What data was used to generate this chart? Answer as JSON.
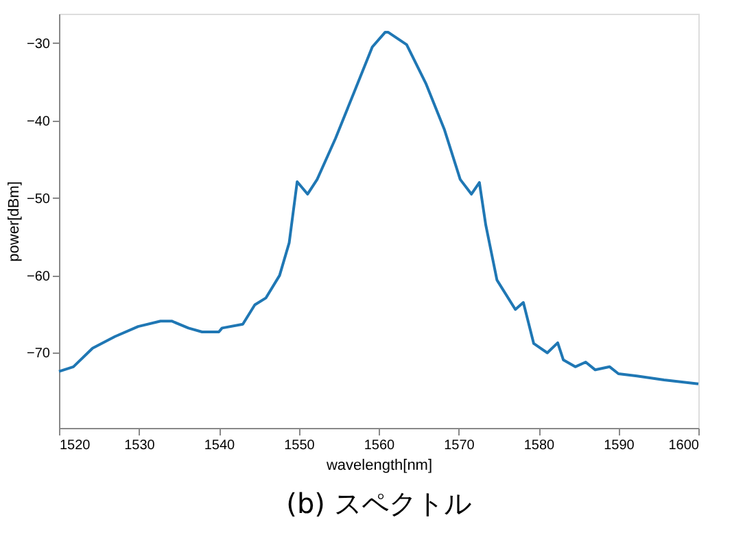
{
  "chart_data": {
    "type": "line",
    "title": "(b) スペクトル",
    "xlabel": "wavelength[nm]",
    "ylabel": "power[dBm]",
    "x": [
      1520,
      1521.8,
      1524.2,
      1527.0,
      1529.9,
      1532.7,
      1534.1,
      1536.2,
      1537.9,
      1540.0,
      1540.4,
      1543.0,
      1544.5,
      1545.9,
      1547.6,
      1548.8,
      1549.8,
      1551.1,
      1552.3,
      1554.6,
      1556.9,
      1559.2,
      1560.8,
      1561.2,
      1563.5,
      1565.9,
      1568.2,
      1570.2,
      1571.6,
      1572.6,
      1573.4,
      1574.8,
      1577.1,
      1578.1,
      1579.4,
      1581.1,
      1582.4,
      1583.1,
      1584.6,
      1585.9,
      1587.1,
      1588.9,
      1590.0,
      1592.3,
      1595.7,
      1600
    ],
    "series": [
      {
        "color": "#1f77b4",
        "values": [
          -72.4,
          -71.8,
          -69.4,
          -67.9,
          -66.6,
          -65.9,
          -65.9,
          -66.8,
          -67.3,
          -67.3,
          -66.8,
          -66.3,
          -63.8,
          -62.9,
          -60.0,
          -55.8,
          -47.9,
          -49.5,
          -47.6,
          -42.3,
          -36.4,
          -30.5,
          -28.6,
          -28.6,
          -30.2,
          -35.2,
          -41.1,
          -47.6,
          -49.5,
          -48.0,
          -53.5,
          -60.6,
          -64.4,
          -63.5,
          -68.8,
          -70.0,
          -68.7,
          -70.9,
          -71.8,
          -71.2,
          -72.2,
          -71.8,
          -72.7,
          -73.0,
          -73.5,
          -74.0
        ]
      }
    ],
    "xlim": [
      1520,
      1600
    ],
    "xticks": [
      1520,
      1530,
      1540,
      1550,
      1560,
      1570,
      1580,
      1590,
      1600
    ],
    "ylim": [
      -79.7,
      -26.2
    ],
    "yticks": [
      -30,
      -40,
      -50,
      -60,
      -70
    ],
    "grid": false,
    "marker": "none",
    "line_style": "solid"
  }
}
